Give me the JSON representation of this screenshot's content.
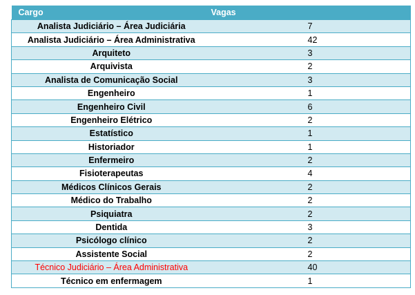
{
  "table": {
    "headers": {
      "cargo": "Cargo",
      "vagas": "Vagas"
    },
    "accent_color": "#4aacc6",
    "band_color": "#d2eaf1",
    "highlight_color": "#ff0000",
    "rows": [
      {
        "cargo": "Analista Judiciário – Área Judiciária",
        "vagas": "7"
      },
      {
        "cargo": "Analista Judiciário – Área Administrativa",
        "vagas": "42"
      },
      {
        "cargo": "Arquiteto",
        "vagas": "3"
      },
      {
        "cargo": "Arquivista",
        "vagas": "2"
      },
      {
        "cargo": "Analista de Comunicação Social",
        "vagas": "3"
      },
      {
        "cargo": "Engenheiro",
        "vagas": "1"
      },
      {
        "cargo": "Engenheiro Civil",
        "vagas": "6"
      },
      {
        "cargo": "Engenheiro Elétrico",
        "vagas": "2"
      },
      {
        "cargo": "Estatístico",
        "vagas": "1"
      },
      {
        "cargo": "Historiador",
        "vagas": "1"
      },
      {
        "cargo": "Enfermeiro",
        "vagas": "2"
      },
      {
        "cargo": "Fisioterapeutas",
        "vagas": "4"
      },
      {
        "cargo": "Médicos Clínicos Gerais",
        "vagas": "2"
      },
      {
        "cargo": "Médico do Trabalho",
        "vagas": "2"
      },
      {
        "cargo": "Psiquiatra",
        "vagas": "2"
      },
      {
        "cargo": "Dentida",
        "vagas": "3"
      },
      {
        "cargo": "Psicólogo clínico",
        "vagas": "2"
      },
      {
        "cargo": "Assistente Social",
        "vagas": "2"
      },
      {
        "cargo": "Técnico Judiciário – Área Administrativa",
        "vagas": "40",
        "highlight": true
      },
      {
        "cargo": "Técnico em enfermagem",
        "vagas": "1"
      }
    ]
  }
}
